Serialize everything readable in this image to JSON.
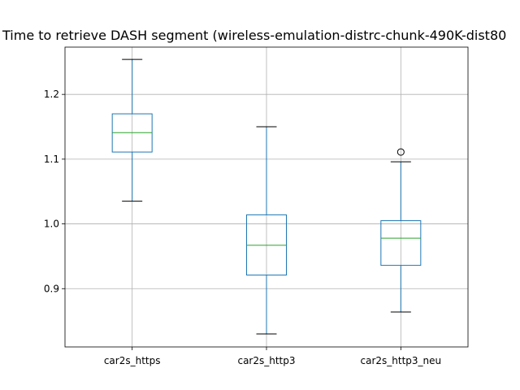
{
  "chart_data": {
    "type": "box",
    "title": "Time to retrieve DASH segment (wireless-emulation-distrc-chunk-490K-dist80",
    "xlabel": "",
    "ylabel": "",
    "ylim": [
      0.81,
      1.273
    ],
    "yticks": [
      0.9,
      1.0,
      1.1,
      1.2
    ],
    "ytick_labels": [
      "0.9",
      "1.0",
      "1.1",
      "1.2"
    ],
    "grid": true,
    "categories": [
      "car2s_https",
      "car2s_http3",
      "car2s_http3_neu"
    ],
    "boxes": [
      {
        "whisker_low": 1.035,
        "q1": 1.111,
        "median": 1.141,
        "q3": 1.17,
        "whisker_high": 1.254,
        "outliers": []
      },
      {
        "whisker_low": 0.83,
        "q1": 0.921,
        "median": 0.967,
        "q3": 1.014,
        "whisker_high": 1.15,
        "outliers": []
      },
      {
        "whisker_low": 0.864,
        "q1": 0.936,
        "median": 0.978,
        "q3": 1.005,
        "whisker_high": 1.096,
        "outliers": [
          1.111
        ]
      }
    ],
    "colors": {
      "box": "#1f77b4",
      "median": "#2ca02c",
      "whisker_cap": "#000000",
      "grid": "#b0b0b0",
      "axes": "#000000"
    }
  }
}
